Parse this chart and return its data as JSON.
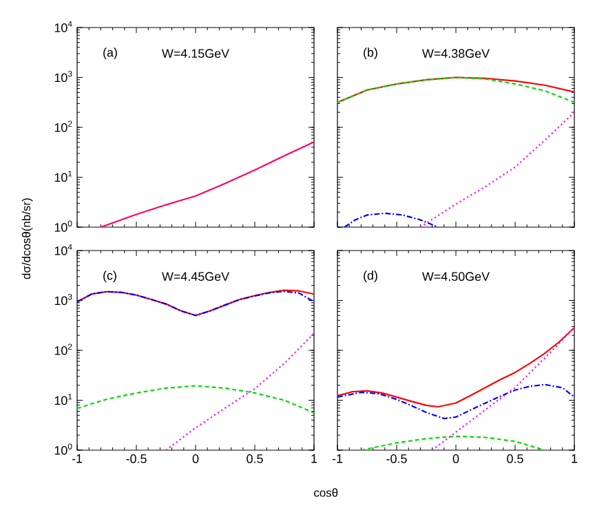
{
  "chart_data": [
    {
      "type": "line",
      "annotations": [
        "(a)",
        "W=4.15GeV"
      ],
      "log": "y",
      "xlim": [
        -1,
        1
      ],
      "xticks": [
        -1,
        -0.5,
        0,
        0.5,
        1
      ],
      "ylim": [
        1,
        10000
      ],
      "yticks": [
        {
          "value": 1,
          "label": "10$^{0}$"
        },
        {
          "value": 10,
          "label": "10$^{1}$"
        },
        {
          "value": 100,
          "label": "10$^{2}$"
        },
        {
          "value": 1000,
          "label": "10$^{3}$"
        },
        {
          "value": 10000,
          "label": "10$^{4}$"
        }
      ],
      "tick_labels": "y",
      "grid": false,
      "marker": "none",
      "series": [
        {
          "color": "#ff0066",
          "line_style": "solid",
          "x": [
            -0.8,
            -0.5,
            -0.25,
            0,
            0.25,
            0.5,
            0.75,
            1
          ],
          "values": [
            1,
            1.8,
            2.8,
            4.2,
            7.5,
            14,
            27,
            51
          ]
        }
      ]
    },
    {
      "type": "line",
      "annotations": [
        "(b)",
        "W=4.38GeV"
      ],
      "log": "y",
      "xlim": [
        -1,
        1
      ],
      "xticks": [
        -1,
        -0.5,
        0,
        0.5,
        1
      ],
      "ylim": [
        1,
        10000
      ],
      "yticks": [
        {
          "value": 1,
          "label": null
        },
        {
          "value": 10,
          "label": null
        },
        {
          "value": 100,
          "label": null
        },
        {
          "value": 1000,
          "label": null
        },
        {
          "value": 10000,
          "label": null
        }
      ],
      "tick_labels": false,
      "grid": false,
      "marker": "none",
      "series": [
        {
          "color": "#ff0000",
          "line_style": "solid",
          "x": [
            -1,
            -0.75,
            -0.5,
            -0.25,
            0,
            0.25,
            0.5,
            0.75,
            1
          ],
          "values": [
            316,
            560,
            740,
            900,
            1000,
            960,
            850,
            700,
            510
          ]
        },
        {
          "color": "#00dd00",
          "line_style": "dashed",
          "x": [
            -1,
            -0.75,
            -0.5,
            -0.25,
            0,
            0.25,
            0.5,
            0.75,
            1
          ],
          "values": [
            316,
            560,
            740,
            900,
            1000,
            930,
            740,
            540,
            316
          ]
        },
        {
          "color": "#0000ff",
          "line_style": "dashdot",
          "x": [
            -0.94,
            -0.85,
            -0.75,
            -0.6,
            -0.45,
            -0.3,
            -0.15
          ],
          "values": [
            1,
            1.4,
            1.75,
            1.9,
            1.75,
            1.4,
            1
          ]
        },
        {
          "color": "#ff00ff",
          "line_style": "dotted",
          "x": [
            -0.3,
            0,
            0.25,
            0.5,
            0.75,
            1
          ],
          "values": [
            1,
            2.9,
            6.5,
            16,
            55,
            200
          ]
        }
      ]
    },
    {
      "type": "line",
      "annotations": [
        "(c)",
        "W=4.45GeV"
      ],
      "xlabel": "cosθ",
      "ylabel": "dσ/dcosθ(nb/sr)",
      "log": "y",
      "xlim": [
        -1,
        1
      ],
      "xticks": [
        -1,
        -0.5,
        0,
        0.5,
        1
      ],
      "ylim": [
        1,
        10000
      ],
      "yticks": [
        {
          "value": 1,
          "label": "10$^{0}$"
        },
        {
          "value": 10,
          "label": "10$^{1}$"
        },
        {
          "value": 100,
          "label": "10$^{2}$"
        },
        {
          "value": 1000,
          "label": "10$^{3}$"
        },
        {
          "value": 10000,
          "label": "10$^{4}$"
        }
      ],
      "grid": false,
      "marker": "none",
      "series": [
        {
          "color": "#ff0000",
          "line_style": "solid",
          "x": [
            -1,
            -0.875,
            -0.75,
            -0.625,
            -0.5,
            -0.375,
            -0.25,
            -0.125,
            0,
            0.125,
            0.25,
            0.375,
            0.5,
            0.625,
            0.75,
            0.875,
            1
          ],
          "values": [
            940,
            1350,
            1500,
            1450,
            1280,
            1050,
            850,
            620,
            500,
            620,
            810,
            1050,
            1250,
            1450,
            1600,
            1550,
            1340
          ]
        },
        {
          "color": "#0000ff",
          "line_style": "dashdot",
          "x": [
            -1,
            -0.875,
            -0.75,
            -0.625,
            -0.5,
            -0.375,
            -0.25,
            -0.125,
            0,
            0.125,
            0.25,
            0.375,
            0.5,
            0.625,
            0.75,
            0.875,
            1
          ],
          "values": [
            940,
            1350,
            1500,
            1450,
            1280,
            1050,
            850,
            620,
            500,
            620,
            810,
            1050,
            1230,
            1420,
            1520,
            1400,
            940
          ]
        },
        {
          "color": "#00dd00",
          "line_style": "dashed",
          "x": [
            -1,
            -0.75,
            -0.5,
            -0.25,
            0,
            0.25,
            0.5,
            0.75,
            1
          ],
          "values": [
            6.9,
            10.5,
            14,
            17.5,
            19.5,
            17.5,
            14,
            10,
            5.6
          ]
        },
        {
          "color": "#ff00ff",
          "line_style": "dotted",
          "x": [
            -0.25,
            0,
            0.25,
            0.5,
            0.75,
            1
          ],
          "values": [
            1,
            2.8,
            7,
            17,
            55,
            220
          ]
        }
      ]
    },
    {
      "type": "line",
      "annotations": [
        "(d)",
        "W=4.50GeV"
      ],
      "log": "y",
      "xlim": [
        -1,
        1
      ],
      "xticks": [
        -1,
        -0.5,
        0,
        0.5,
        1
      ],
      "ylim": [
        1,
        10000
      ],
      "yticks": [
        {
          "value": 1,
          "label": null
        },
        {
          "value": 10,
          "label": null
        },
        {
          "value": 100,
          "label": null
        },
        {
          "value": 1000,
          "label": null
        },
        {
          "value": 10000,
          "label": null
        }
      ],
      "tick_labels": "x",
      "grid": false,
      "marker": "none",
      "series": [
        {
          "color": "#ff0000",
          "line_style": "solid",
          "x": [
            -1,
            -0.875,
            -0.75,
            -0.625,
            -0.5,
            -0.375,
            -0.25,
            -0.15,
            0,
            0.125,
            0.25,
            0.375,
            0.5,
            0.625,
            0.75,
            0.875,
            1
          ],
          "values": [
            12.3,
            14.8,
            15.4,
            14,
            11.6,
            9.5,
            7.9,
            7.4,
            8.8,
            12.5,
            18,
            26,
            36,
            55,
            87,
            150,
            285
          ]
        },
        {
          "color": "#0000ff",
          "line_style": "dashdot",
          "x": [
            -1,
            -0.8,
            -0.65,
            -0.5,
            -0.375,
            -0.25,
            -0.1,
            0,
            0.125,
            0.25,
            0.375,
            0.5,
            0.625,
            0.75,
            0.9,
            1
          ],
          "values": [
            11.6,
            14.4,
            13.5,
            10.4,
            7.8,
            5.7,
            4.3,
            4.6,
            6.4,
            8.8,
            12,
            16,
            19,
            20.6,
            17.8,
            11.6
          ]
        },
        {
          "color": "#00dd00",
          "line_style": "dashed",
          "x": [
            -0.8,
            -0.5,
            -0.25,
            0,
            0.25,
            0.5,
            0.75
          ],
          "values": [
            1,
            1.4,
            1.7,
            1.9,
            1.8,
            1.5,
            1
          ]
        },
        {
          "color": "#ff00ff",
          "line_style": "dotted",
          "x": [
            -0.2,
            0,
            0.25,
            0.5,
            0.75,
            1
          ],
          "values": [
            1,
            2.3,
            6.5,
            18,
            70,
            285
          ]
        }
      ]
    }
  ]
}
